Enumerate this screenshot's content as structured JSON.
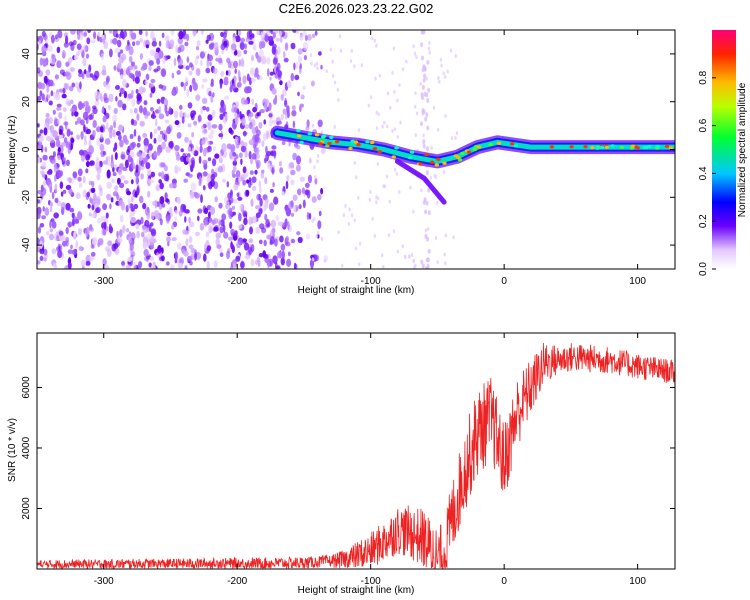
{
  "title": "C2E6.2026.023.23.22.G02",
  "chart_data": [
    {
      "type": "heatmap",
      "xlabel": "Height of straight line (km)",
      "ylabel": "Frequency (Hz)",
      "xlim": [
        -350,
        128
      ],
      "ylim": [
        -50,
        50
      ],
      "x_ticks": [
        -300,
        -200,
        -100,
        0,
        100
      ],
      "y_ticks": [
        -40,
        -20,
        0,
        20,
        40
      ],
      "colorbar": {
        "label": "Normalized spectral amplitude",
        "range": [
          0.0,
          1.0
        ],
        "ticks": [
          "0.0",
          "0.2",
          "0.4",
          "0.6",
          "0.8"
        ]
      },
      "noise_region_end_km": -145,
      "ridge_points": [
        {
          "x": -170,
          "y": 7
        },
        {
          "x": -150,
          "y": 5
        },
        {
          "x": -130,
          "y": 3
        },
        {
          "x": -110,
          "y": 2
        },
        {
          "x": -90,
          "y": 0
        },
        {
          "x": -70,
          "y": -3
        },
        {
          "x": -50,
          "y": -5
        },
        {
          "x": -35,
          "y": -3
        },
        {
          "x": -20,
          "y": 1
        },
        {
          "x": -5,
          "y": 3
        },
        {
          "x": 20,
          "y": 1
        },
        {
          "x": 60,
          "y": 1
        },
        {
          "x": 128,
          "y": 1
        }
      ],
      "secondary_branch": [
        {
          "x": -80,
          "y": -5
        },
        {
          "x": -60,
          "y": -12
        },
        {
          "x": -45,
          "y": -22
        }
      ]
    },
    {
      "type": "line",
      "xlabel": "Height of straight line (km)",
      "ylabel": "SNR (10 * v/v)",
      "xlim": [
        -350,
        128
      ],
      "ylim": [
        0,
        7800
      ],
      "x_ticks": [
        -300,
        -200,
        -100,
        0,
        100
      ],
      "y_ticks": [
        2000,
        4000,
        6000
      ],
      "series": [
        {
          "name": "SNR",
          "color": "#ee2222",
          "profile": [
            {
              "x": -350,
              "y": 150
            },
            {
              "x": -150,
              "y": 200
            },
            {
              "x": -120,
              "y": 300
            },
            {
              "x": -100,
              "y": 600
            },
            {
              "x": -90,
              "y": 900
            },
            {
              "x": -80,
              "y": 1300
            },
            {
              "x": -70,
              "y": 1200
            },
            {
              "x": -60,
              "y": 1000
            },
            {
              "x": -55,
              "y": 600
            },
            {
              "x": -50,
              "y": 300
            },
            {
              "x": -45,
              "y": 400
            },
            {
              "x": -40,
              "y": 1500
            },
            {
              "x": -30,
              "y": 3200
            },
            {
              "x": -20,
              "y": 4500
            },
            {
              "x": -10,
              "y": 5000
            },
            {
              "x": 0,
              "y": 3500
            },
            {
              "x": 10,
              "y": 5200
            },
            {
              "x": 20,
              "y": 6000
            },
            {
              "x": 30,
              "y": 6800
            },
            {
              "x": 50,
              "y": 7000
            },
            {
              "x": 80,
              "y": 6900
            },
            {
              "x": 100,
              "y": 6700
            },
            {
              "x": 128,
              "y": 6500
            }
          ],
          "noise_amplitude": [
            {
              "x": -350,
              "y": 150
            },
            {
              "x": -130,
              "y": 200
            },
            {
              "x": -100,
              "y": 600
            },
            {
              "x": -60,
              "y": 1000
            },
            {
              "x": -20,
              "y": 1500
            },
            {
              "x": 10,
              "y": 1200
            },
            {
              "x": 40,
              "y": 500
            },
            {
              "x": 128,
              "y": 400
            }
          ]
        }
      ]
    }
  ]
}
